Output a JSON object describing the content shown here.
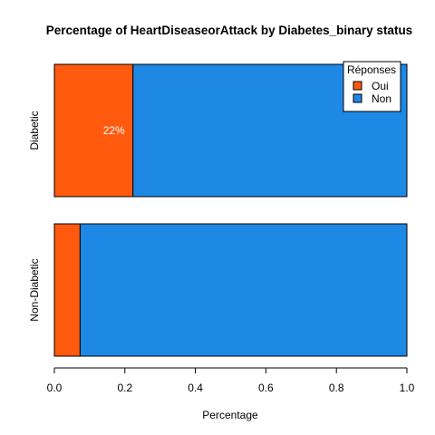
{
  "chart_data": {
    "type": "bar",
    "orientation": "horizontal",
    "stacked": true,
    "title": "Percentage of HeartDiseaseorAttack by Diabetes_binary status",
    "xlabel": "Percentage",
    "ylabel": "",
    "xlim": [
      0,
      1
    ],
    "x_ticks": [
      "0.0",
      "0.2",
      "0.4",
      "0.6",
      "0.8",
      "1.0"
    ],
    "categories": [
      "Diabetic",
      "Non-Diabetic"
    ],
    "series": [
      {
        "name": "Oui",
        "color": "#FF5A0E",
        "values": [
          0.223,
          0.073
        ],
        "labels": [
          "22%",
          ""
        ]
      },
      {
        "name": "Non",
        "color": "#1E88E5",
        "values": [
          0.777,
          0.927
        ],
        "labels": [
          "",
          ""
        ]
      }
    ],
    "legend": {
      "title": "Réponses",
      "position": "top-right"
    },
    "grid": false
  }
}
